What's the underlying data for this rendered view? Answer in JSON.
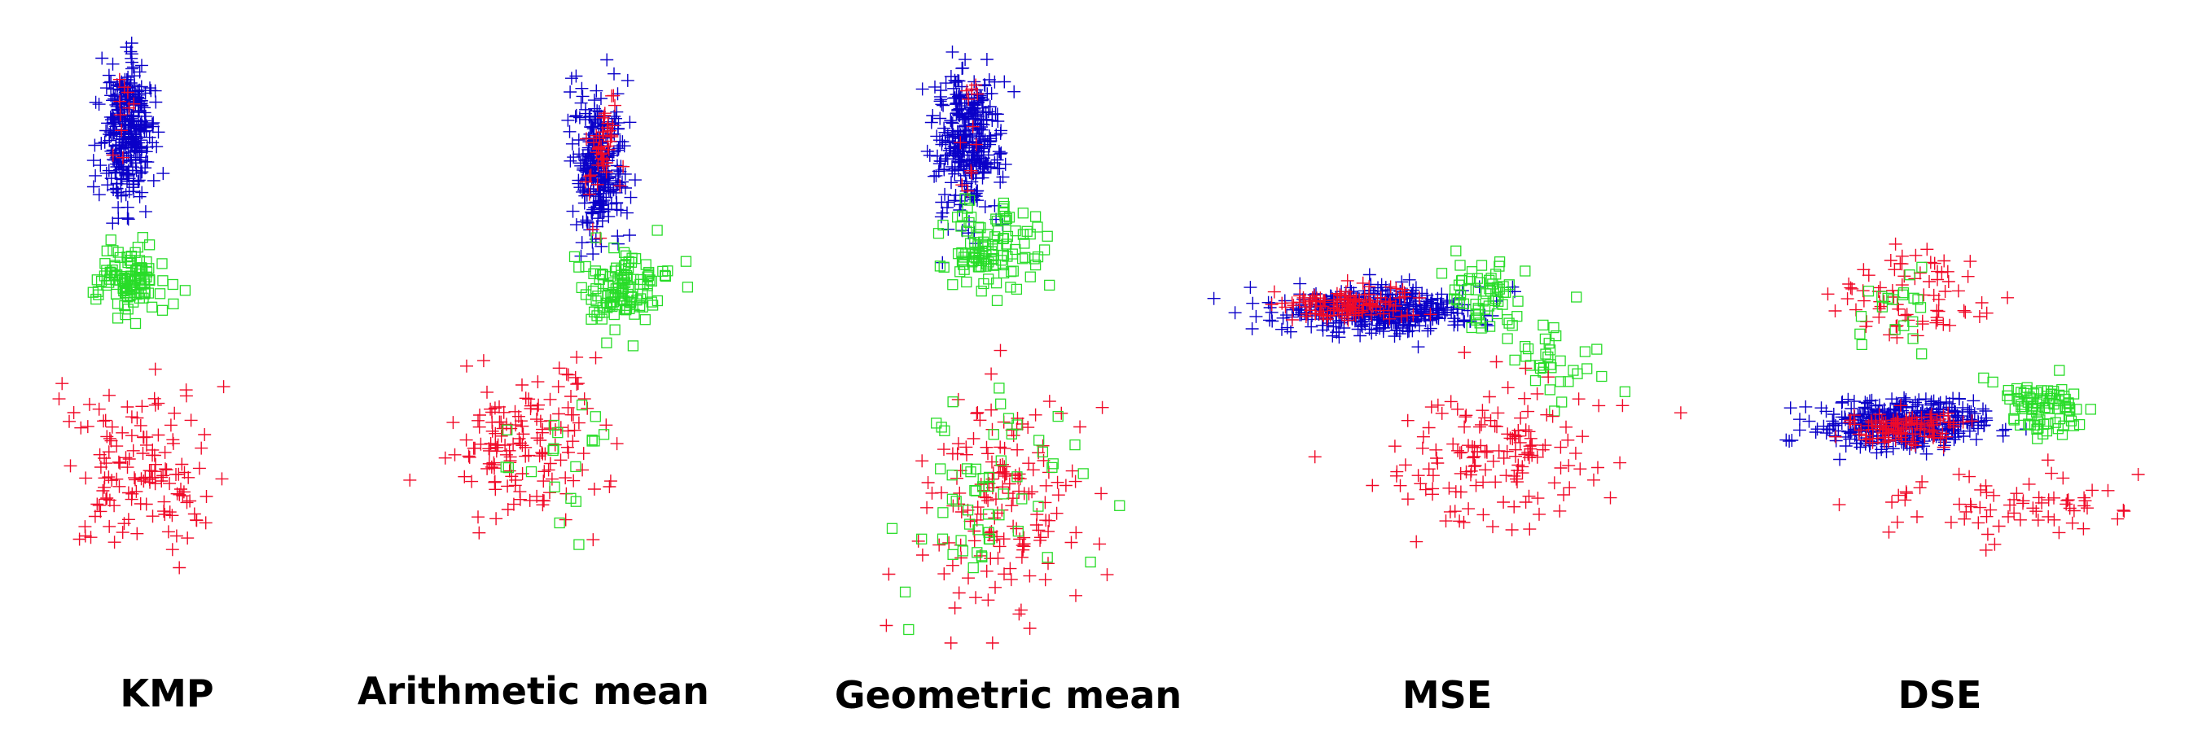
{
  "figure": {
    "panel_labels": [
      "KMP",
      "Arithmetic mean",
      "Geometric mean",
      "MSE",
      "DSE"
    ]
  },
  "colors": {
    "class_a": "#0a00c8",
    "class_b": "#f00a28",
    "class_c": "#28dc28"
  },
  "marker_styles": {
    "class_a": "plus",
    "class_b": "plus",
    "class_c": "square"
  },
  "chart_data": [
    {
      "type": "scatter",
      "title": "KMP",
      "axes_visible": false,
      "series": [
        {
          "class": "class_a",
          "color": "#0a00c8",
          "marker": "plus",
          "count": 330,
          "center": [
            155,
            160
          ],
          "spread": [
            28,
            75
          ]
        },
        {
          "class": "class_c",
          "color": "#28dc28",
          "marker": "square",
          "count": 110,
          "center": [
            160,
            345
          ],
          "spread": [
            42,
            40
          ]
        },
        {
          "class": "class_b",
          "color": "#f00a28",
          "marker": "plus",
          "count": 140,
          "center": [
            170,
            580
          ],
          "spread": [
            80,
            95
          ]
        },
        {
          "class": "class_b",
          "color": "#f00a28",
          "marker": "plus",
          "count": 10,
          "center": [
            150,
            140
          ],
          "spread": [
            18,
            50
          ]
        }
      ]
    },
    {
      "type": "scatter",
      "title": "Arithmetic mean",
      "axes_visible": false,
      "series": [
        {
          "class": "class_a",
          "color": "#0a00c8",
          "marker": "plus",
          "count": 280,
          "center": [
            735,
            200
          ],
          "spread": [
            28,
            80
          ]
        },
        {
          "class": "class_b",
          "color": "#f00a28",
          "marker": "plus",
          "count": 45,
          "center": [
            740,
            190
          ],
          "spread": [
            22,
            60
          ]
        },
        {
          "class": "class_c",
          "color": "#28dc28",
          "marker": "square",
          "count": 120,
          "center": [
            765,
            355
          ],
          "spread": [
            45,
            45
          ]
        },
        {
          "class": "class_b",
          "color": "#f00a28",
          "marker": "plus",
          "count": 150,
          "center": [
            650,
            540
          ],
          "spread": [
            85,
            85
          ]
        },
        {
          "class": "class_c",
          "color": "#28dc28",
          "marker": "square",
          "count": 20,
          "center": [
            690,
            560
          ],
          "spread": [
            80,
            70
          ]
        }
      ]
    },
    {
      "type": "scatter",
      "title": "Geometric mean",
      "axes_visible": false,
      "series": [
        {
          "class": "class_a",
          "color": "#0a00c8",
          "marker": "plus",
          "count": 330,
          "center": [
            1190,
            170
          ],
          "spread": [
            38,
            85
          ]
        },
        {
          "class": "class_b",
          "color": "#f00a28",
          "marker": "plus",
          "count": 12,
          "center": [
            1195,
            150
          ],
          "spread": [
            20,
            60
          ]
        },
        {
          "class": "class_c",
          "color": "#28dc28",
          "marker": "square",
          "count": 110,
          "center": [
            1215,
            305
          ],
          "spread": [
            55,
            50
          ]
        },
        {
          "class": "class_b",
          "color": "#f00a28",
          "marker": "plus",
          "count": 160,
          "center": [
            1230,
            620
          ],
          "spread": [
            95,
            120
          ]
        },
        {
          "class": "class_c",
          "color": "#28dc28",
          "marker": "square",
          "count": 60,
          "center": [
            1220,
            610
          ],
          "spread": [
            90,
            120
          ]
        }
      ]
    },
    {
      "type": "scatter",
      "title": "MSE",
      "axes_visible": false,
      "series": [
        {
          "class": "class_a",
          "color": "#0a00c8",
          "marker": "plus",
          "count": 420,
          "center": [
            1700,
            380
          ],
          "spread": [
            110,
            25
          ]
        },
        {
          "class": "class_b",
          "color": "#f00a28",
          "marker": "plus",
          "count": 120,
          "center": [
            1650,
            375
          ],
          "spread": [
            70,
            18
          ]
        },
        {
          "class": "class_c",
          "color": "#28dc28",
          "marker": "square",
          "count": 60,
          "center": [
            1820,
            360
          ],
          "spread": [
            45,
            40
          ]
        },
        {
          "class": "class_c",
          "color": "#28dc28",
          "marker": "square",
          "count": 35,
          "center": [
            1920,
            450
          ],
          "spread": [
            55,
            55
          ]
        },
        {
          "class": "class_b",
          "color": "#f00a28",
          "marker": "plus",
          "count": 150,
          "center": [
            1840,
            560
          ],
          "spread": [
            120,
            75
          ]
        }
      ]
    },
    {
      "type": "scatter",
      "title": "DSE",
      "axes_visible": false,
      "series": [
        {
          "class": "class_a",
          "color": "#0a00c8",
          "marker": "plus",
          "count": 420,
          "center": [
            2340,
            520
          ],
          "spread": [
            95,
            25
          ]
        },
        {
          "class": "class_b",
          "color": "#f00a28",
          "marker": "plus",
          "count": 100,
          "center": [
            2340,
            525
          ],
          "spread": [
            60,
            18
          ]
        },
        {
          "class": "class_c",
          "color": "#28dc28",
          "marker": "square",
          "count": 85,
          "center": [
            2510,
            500
          ],
          "spread": [
            45,
            38
          ]
        },
        {
          "class": "class_b",
          "color": "#f00a28",
          "marker": "plus",
          "count": 75,
          "center": [
            2350,
            360
          ],
          "spread": [
            90,
            55
          ]
        },
        {
          "class": "class_b",
          "color": "#f00a28",
          "marker": "plus",
          "count": 70,
          "center": [
            2460,
            620
          ],
          "spread": [
            140,
            40
          ]
        },
        {
          "class": "class_c",
          "color": "#28dc28",
          "marker": "square",
          "count": 20,
          "center": [
            2330,
            380
          ],
          "spread": [
            60,
            50
          ]
        }
      ]
    }
  ]
}
